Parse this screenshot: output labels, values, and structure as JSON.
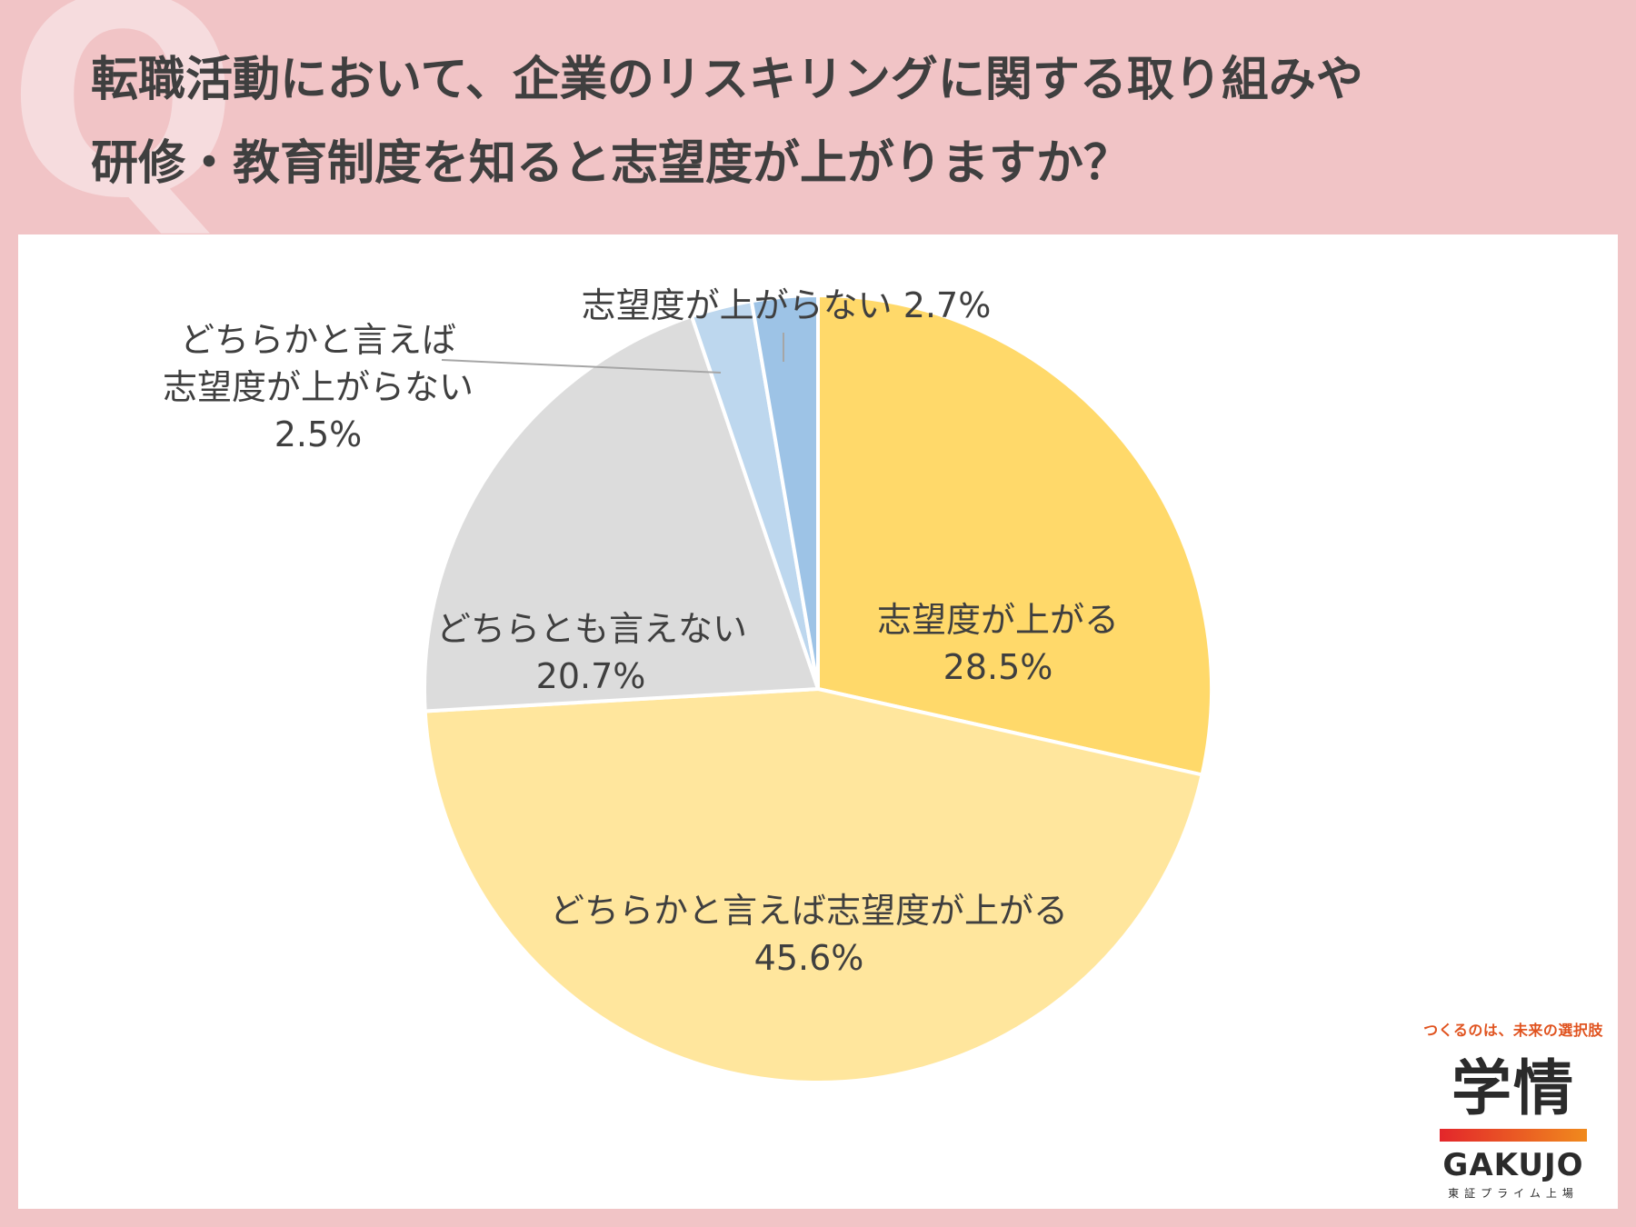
{
  "header": {
    "title_line1": "転職活動において、企業のリスキリングに関する取り組みや",
    "title_line2": "研修・教育制度を知ると志望度が上がりますか？",
    "q_mark": "Q"
  },
  "chart_data": {
    "type": "pie",
    "slices": [
      {
        "label": "志望度が上がる",
        "value": 28.5,
        "value_label": "28.5%",
        "color": "#ffd96a"
      },
      {
        "label": "どちらかと言えば志望度が上がる",
        "value": 45.6,
        "value_label": "45.6%",
        "color": "#ffe69d"
      },
      {
        "label": "どちらとも言えない",
        "value": 20.7,
        "value_label": "20.7%",
        "color": "#dcdcdc"
      },
      {
        "label_line1": "どちらかと言えば",
        "label_line2": "志望度が上がらない",
        "value": 2.5,
        "value_label": "2.5%",
        "color": "#bdd7ee"
      },
      {
        "label": "志望度が上がらない",
        "value": 2.7,
        "value_label": "2.7%",
        "color": "#9dc3e6"
      }
    ],
    "start_angle_deg": 0,
    "direction": "clockwise"
  },
  "logo": {
    "tagline": "つくるのは、未来の選択肢",
    "mark": "学情",
    "name": "GAKUJO",
    "sub": "東証プライム上場"
  }
}
